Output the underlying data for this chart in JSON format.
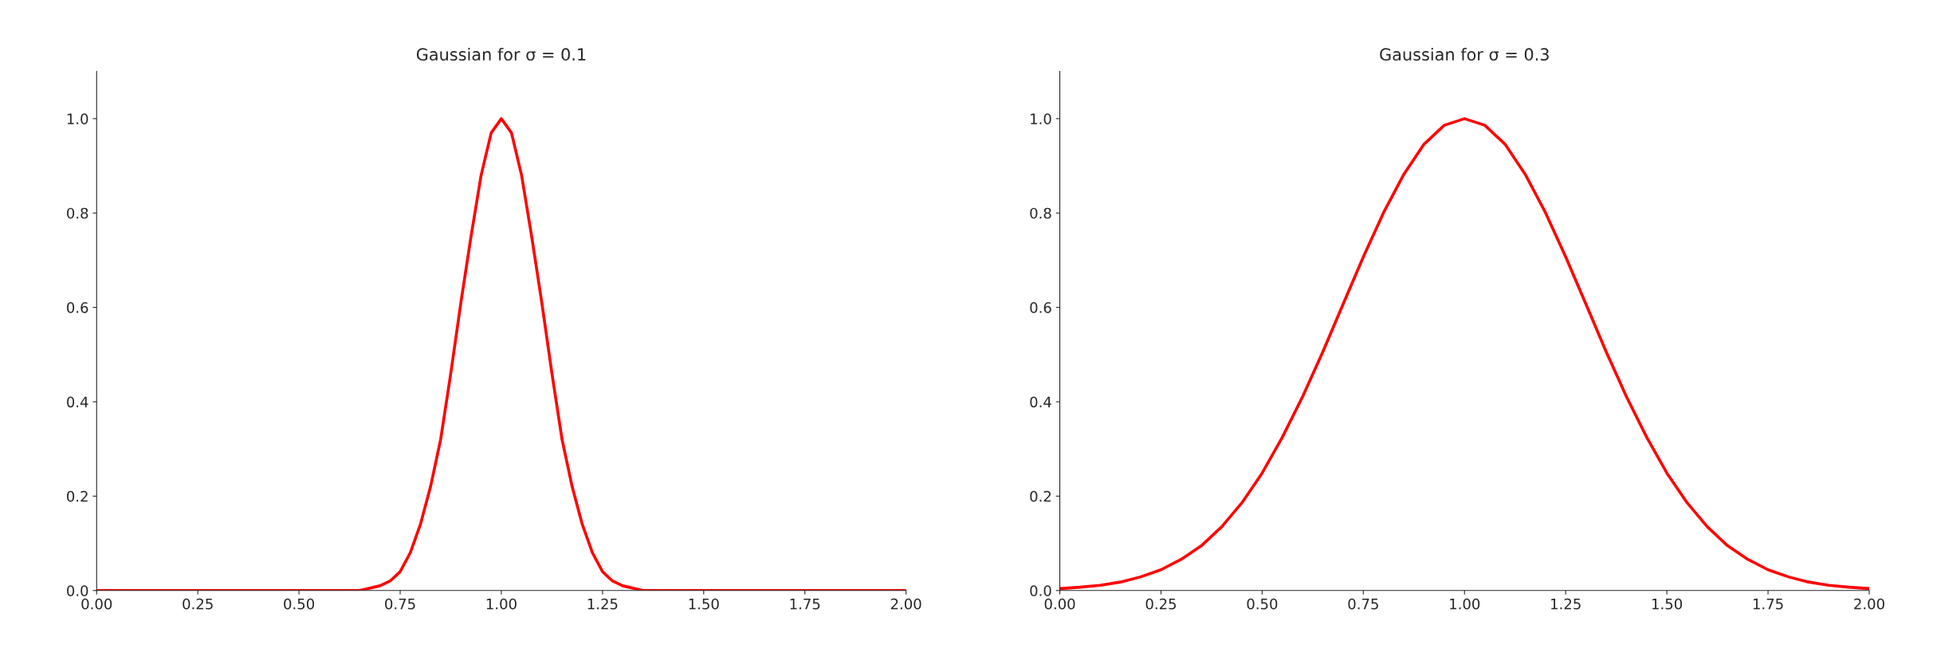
{
  "chart_data": [
    {
      "type": "line",
      "title": "Gaussian for σ = 0.1",
      "series": [
        {
          "color": "#ff0000",
          "x": [
            0,
            0.25,
            0.5,
            0.6,
            0.65,
            0.7,
            0.725,
            0.75,
            0.775,
            0.8,
            0.825,
            0.85,
            0.875,
            0.9,
            0.925,
            0.95,
            0.975,
            1.0,
            1.025,
            1.05,
            1.075,
            1.1,
            1.125,
            1.15,
            1.175,
            1.2,
            1.225,
            1.25,
            1.275,
            1.3,
            1.35,
            1.4,
            1.5,
            1.75,
            2.0
          ],
          "values": [
            0,
            0,
            0,
            0,
            0,
            0.01,
            0.02,
            0.04,
            0.08,
            0.14,
            0.22,
            0.32,
            0.46,
            0.61,
            0.75,
            0.88,
            0.97,
            1.0,
            0.97,
            0.88,
            0.75,
            0.61,
            0.46,
            0.32,
            0.22,
            0.14,
            0.08,
            0.04,
            0.02,
            0.01,
            0,
            0,
            0,
            0,
            0
          ]
        }
      ],
      "xlim": [
        0,
        2
      ],
      "ylim": [
        0,
        1.1
      ],
      "xticks": [
        {
          "value": 0,
          "label": "0.00"
        },
        {
          "value": 0.25,
          "label": "0.25"
        },
        {
          "value": 0.5,
          "label": "0.50"
        },
        {
          "value": 0.75,
          "label": "0.75"
        },
        {
          "value": 1,
          "label": "1.00"
        },
        {
          "value": 1.25,
          "label": "1.25"
        },
        {
          "value": 1.5,
          "label": "1.50"
        },
        {
          "value": 1.75,
          "label": "1.75"
        },
        {
          "value": 2,
          "label": "2.00"
        }
      ],
      "yticks": [
        {
          "value": 0,
          "label": "0.0"
        },
        {
          "value": 0.2,
          "label": "0.2"
        },
        {
          "value": 0.4,
          "label": "0.4"
        },
        {
          "value": 0.6,
          "label": "0.6"
        },
        {
          "value": 0.8,
          "label": "0.8"
        },
        {
          "value": 1,
          "label": "1.0"
        }
      ]
    },
    {
      "type": "line",
      "title": "Gaussian for σ = 0.3",
      "series": [
        {
          "color": "#ff0000",
          "x": [
            0,
            0.05,
            0.1,
            0.15,
            0.2,
            0.25,
            0.3,
            0.35,
            0.4,
            0.45,
            0.5,
            0.55,
            0.6,
            0.65,
            0.7,
            0.75,
            0.8,
            0.85,
            0.9,
            0.95,
            1.0,
            1.05,
            1.1,
            1.15,
            1.2,
            1.25,
            1.3,
            1.35,
            1.4,
            1.45,
            1.5,
            1.55,
            1.6,
            1.65,
            1.7,
            1.75,
            1.8,
            1.85,
            1.9,
            1.95,
            2.0
          ],
          "values": [
            0.004,
            0.007,
            0.011,
            0.018,
            0.029,
            0.044,
            0.066,
            0.095,
            0.135,
            0.186,
            0.249,
            0.325,
            0.411,
            0.506,
            0.607,
            0.707,
            0.801,
            0.882,
            0.946,
            0.986,
            1.0,
            0.986,
            0.946,
            0.882,
            0.801,
            0.707,
            0.607,
            0.506,
            0.411,
            0.325,
            0.249,
            0.186,
            0.135,
            0.095,
            0.066,
            0.044,
            0.029,
            0.018,
            0.011,
            0.007,
            0.004
          ]
        }
      ],
      "xlim": [
        0,
        2
      ],
      "ylim": [
        0,
        1.1
      ],
      "xticks": [
        {
          "value": 0,
          "label": "0.00"
        },
        {
          "value": 0.25,
          "label": "0.25"
        },
        {
          "value": 0.5,
          "label": "0.50"
        },
        {
          "value": 0.75,
          "label": "0.75"
        },
        {
          "value": 1,
          "label": "1.00"
        },
        {
          "value": 1.25,
          "label": "1.25"
        },
        {
          "value": 1.5,
          "label": "1.50"
        },
        {
          "value": 1.75,
          "label": "1.75"
        },
        {
          "value": 2,
          "label": "2.00"
        }
      ],
      "yticks": [
        {
          "value": 0,
          "label": "0.0"
        },
        {
          "value": 0.2,
          "label": "0.2"
        },
        {
          "value": 0.4,
          "label": "0.4"
        },
        {
          "value": 0.6,
          "label": "0.6"
        },
        {
          "value": 0.8,
          "label": "0.8"
        },
        {
          "value": 1,
          "label": "1.0"
        }
      ]
    }
  ]
}
